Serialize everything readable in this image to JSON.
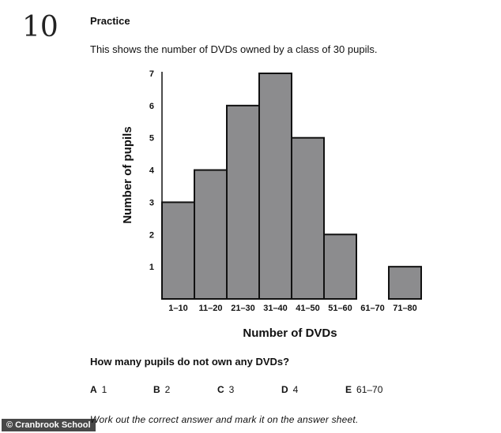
{
  "question_number": "10",
  "heading": "Practice",
  "intro": "This shows the number of DVDs owned by a class of 30 pupils.",
  "chart_data": {
    "type": "bar",
    "title": "",
    "xlabel": "Number of DVDs",
    "ylabel": "Number of pupils",
    "categories": [
      "1–10",
      "11–20",
      "21–30",
      "31–40",
      "41–50",
      "51–60",
      "61–70",
      "71–80"
    ],
    "values": [
      3,
      4,
      6,
      7,
      5,
      2,
      0,
      1
    ],
    "ylim": [
      0,
      7
    ],
    "yticks": [
      "1",
      "2",
      "3",
      "4",
      "5",
      "6",
      "7"
    ],
    "grid": false,
    "bar_color": "#8c8c8e",
    "bar_edge_color": "#111111"
  },
  "question": "How many pupils do not own any DVDs?",
  "options": [
    {
      "letter": "A",
      "text": "1"
    },
    {
      "letter": "B",
      "text": "2"
    },
    {
      "letter": "C",
      "text": "3"
    },
    {
      "letter": "D",
      "text": "4"
    },
    {
      "letter": "E",
      "text": "61–70"
    }
  ],
  "instruction": "Work out the correct answer and mark it on the answer sheet.",
  "credit": "© Cranbrook School"
}
